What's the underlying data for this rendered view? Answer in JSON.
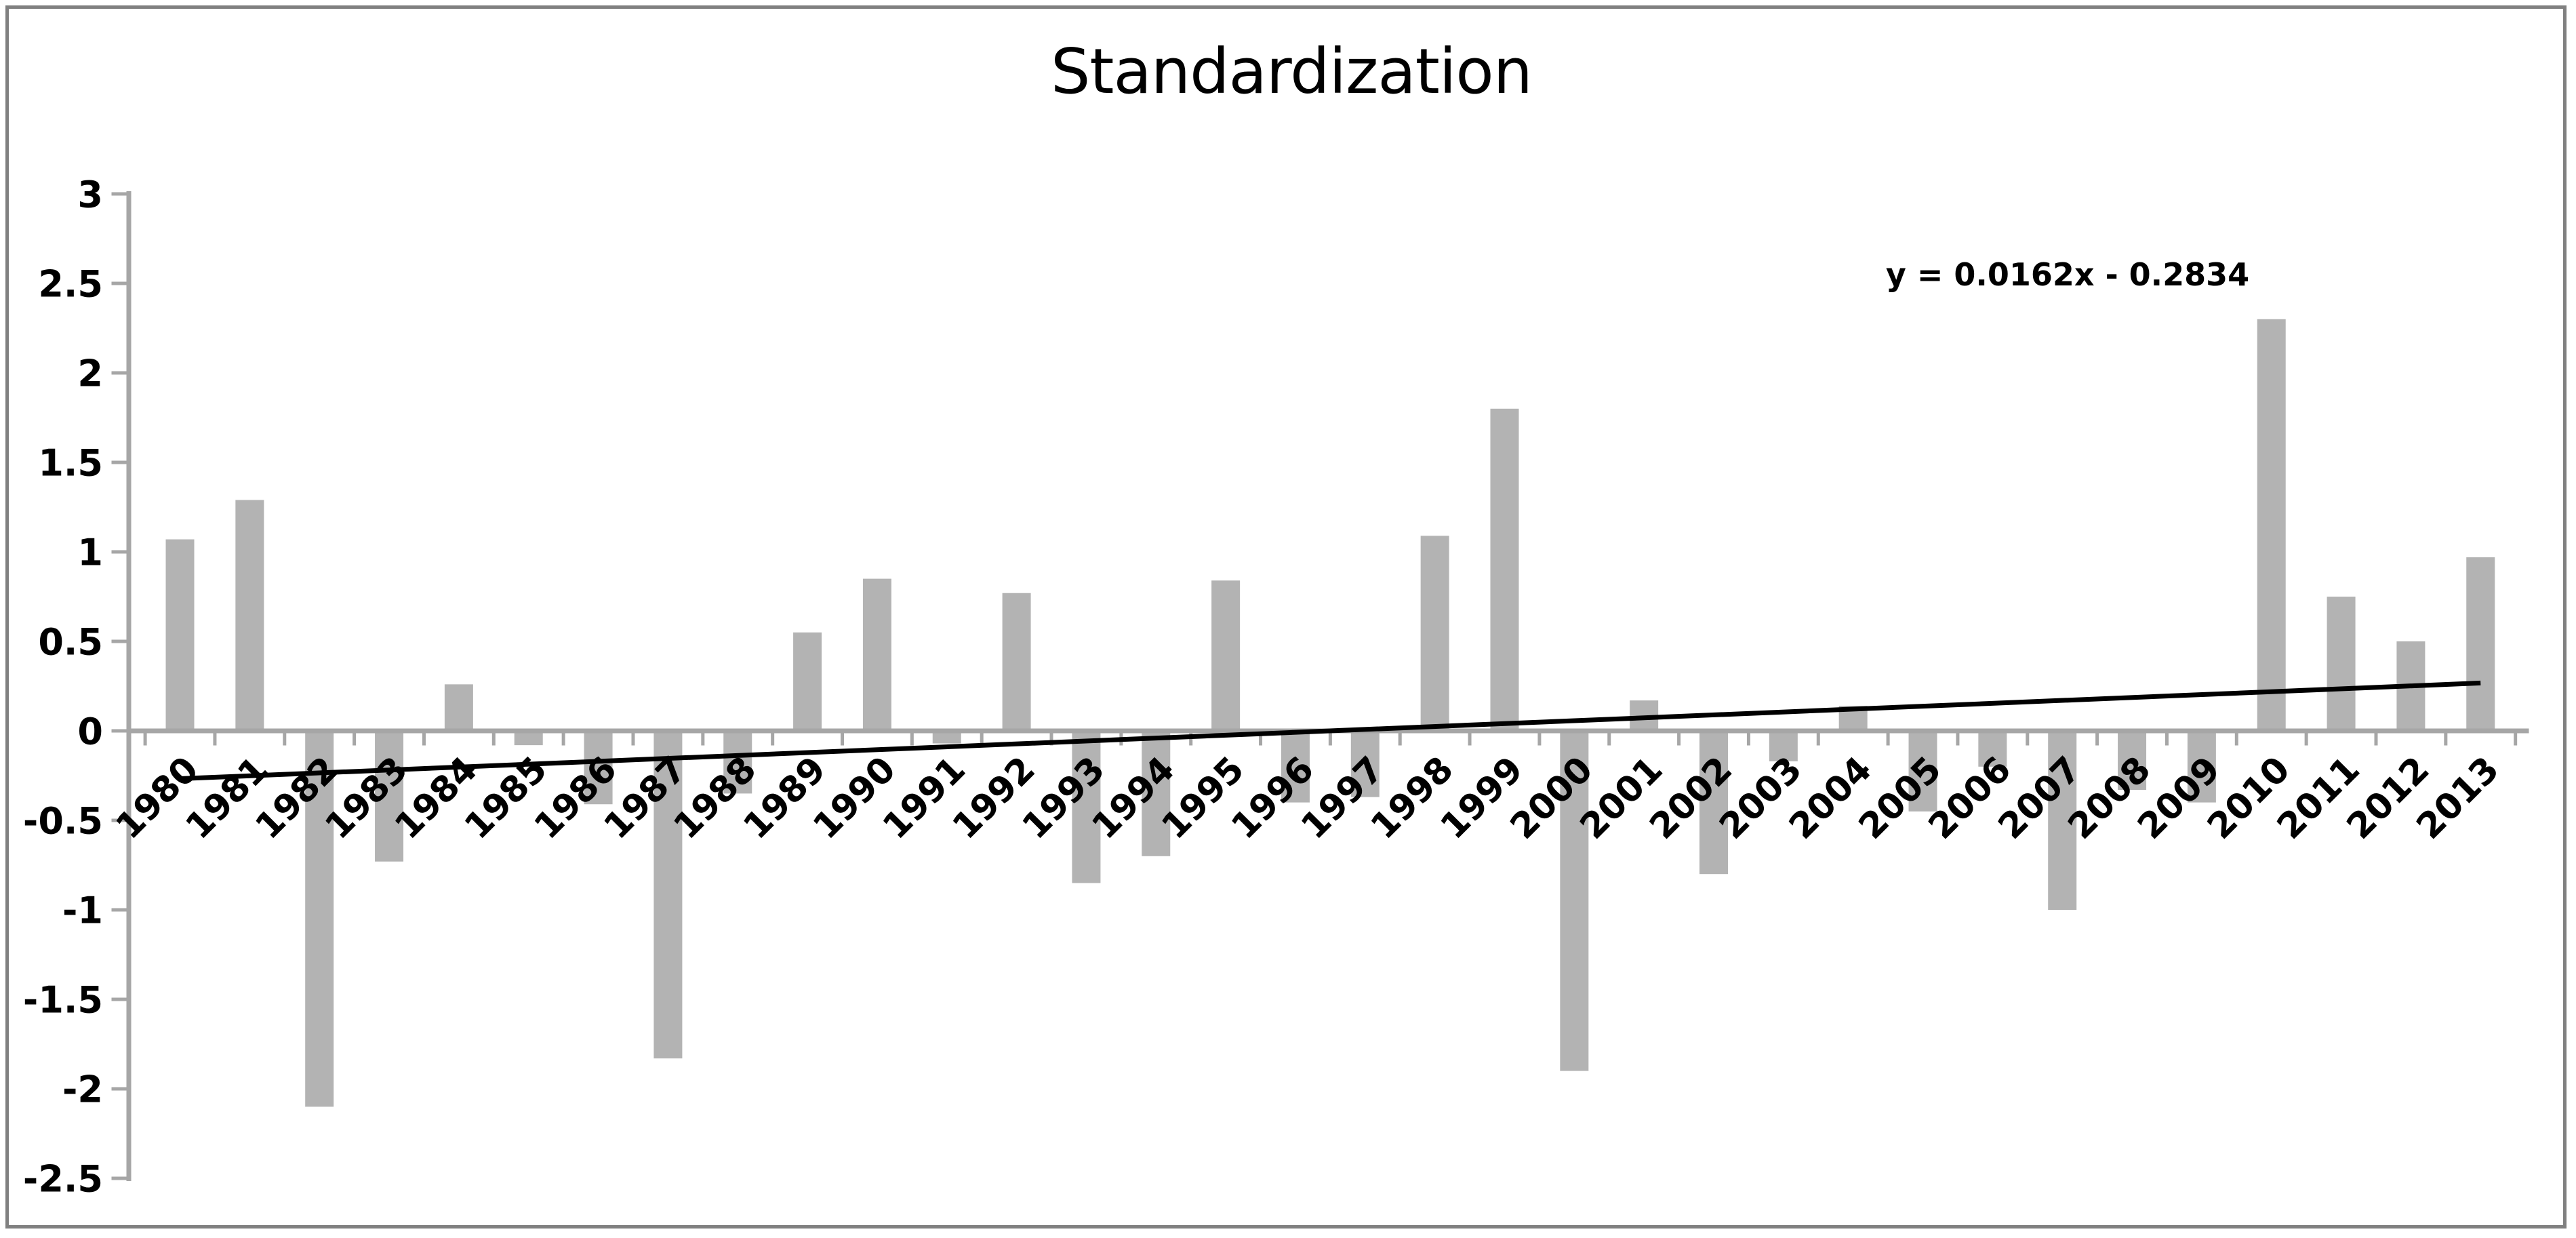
{
  "title": "Standardization",
  "trendline_label": "y = 0.0162x - 0.2834",
  "chart_data": {
    "type": "bar",
    "title": "Standardization",
    "xlabel": "",
    "ylabel": "",
    "categories": [
      "1980",
      "1981",
      "1982",
      "1983",
      "1984",
      "1985",
      "1986",
      "1987",
      "1988",
      "1989",
      "1990",
      "1991",
      "1992",
      "1993",
      "1994",
      "1995",
      "1996",
      "1997",
      "1998",
      "1999",
      "2000",
      "2001",
      "2002",
      "2003",
      "2004",
      "2005",
      "2006",
      "2007",
      "2008",
      "2009",
      "2010",
      "2011",
      "2012",
      "2013"
    ],
    "values": [
      1.07,
      1.29,
      -2.1,
      -0.73,
      0.26,
      -0.08,
      -0.41,
      -1.83,
      -0.35,
      0.55,
      0.85,
      -0.07,
      0.77,
      -0.85,
      -0.7,
      0.84,
      -0.4,
      -0.37,
      1.09,
      1.8,
      -1.9,
      0.17,
      -0.8,
      -0.17,
      0.14,
      -0.45,
      -0.2,
      -1.0,
      -0.33,
      -0.4,
      2.3,
      0.75,
      0.5,
      0.97
    ],
    "ylim": [
      -2.5,
      3
    ],
    "ytick_step": 0.5,
    "y_tick_labels": [
      "3",
      "2.5",
      "2",
      "1.5",
      "1",
      "0.5",
      "0",
      "-0.5",
      "-1",
      "-1.5",
      "-2",
      "-2.5"
    ],
    "grid": false,
    "legend_position": "none",
    "trendline": {
      "label": "y = 0.0162x - 0.2834",
      "slope": 0.0162,
      "intercept": -0.2834,
      "x_is_index_starting_at": 1
    },
    "bar_color": "#b3b3b3",
    "axis_color": "#a6a6a6",
    "trend_color": "#000000",
    "text_color": "#000000"
  }
}
